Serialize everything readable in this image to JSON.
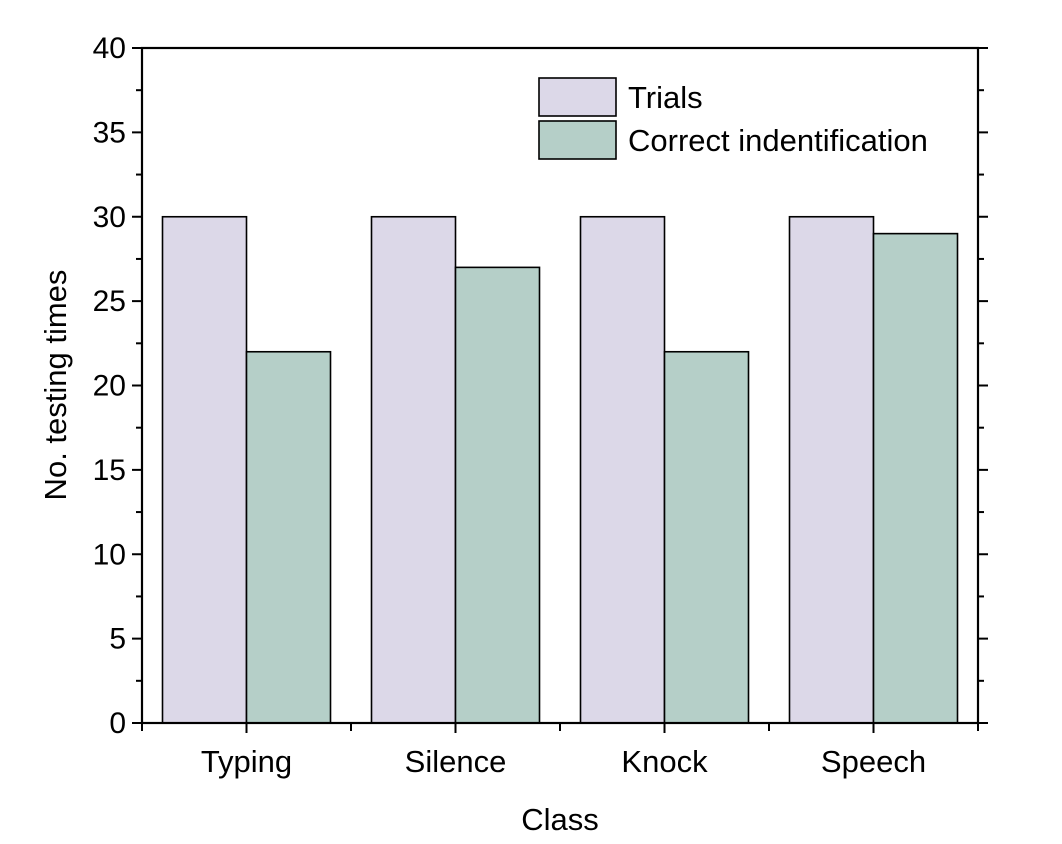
{
  "chart_data": {
    "type": "bar",
    "title": "",
    "xlabel": "Class",
    "ylabel": "No. testing times",
    "categories": [
      "Typing",
      "Silence",
      "Knock",
      "Speech"
    ],
    "series": [
      {
        "name": "Trials",
        "values": [
          30,
          30,
          30,
          30
        ],
        "color": "#dcd8e8"
      },
      {
        "name": "Correct indentification",
        "values": [
          22,
          27,
          22,
          29
        ],
        "color": "#b5cfc8"
      }
    ],
    "ylim": [
      0,
      40
    ],
    "yticks": [
      0,
      5,
      10,
      15,
      20,
      25,
      30,
      35,
      40
    ],
    "grid": false,
    "legend": "top-right"
  }
}
